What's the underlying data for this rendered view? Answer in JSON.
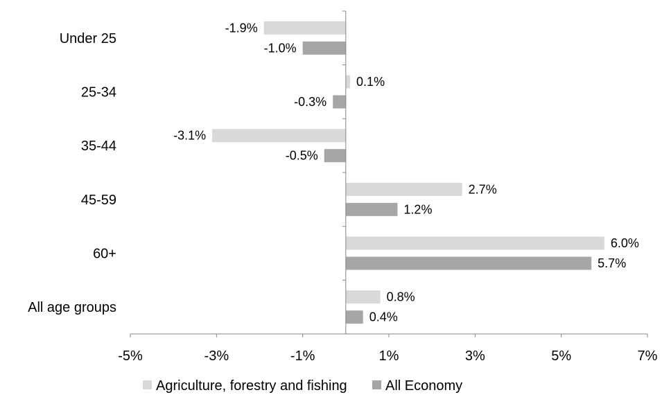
{
  "chart_data": {
    "type": "bar",
    "orientation": "horizontal",
    "categories": [
      "Under 25",
      "25-34",
      "35-44",
      "45-59",
      "60+",
      "All age groups"
    ],
    "series": [
      {
        "name": "Agriculture, forestry and fishing",
        "values": [
          -1.9,
          0.1,
          -3.1,
          2.7,
          6.0,
          0.8
        ],
        "labels": [
          "-1.9%",
          "0.1%",
          "-3.1%",
          "2.7%",
          "6.0%",
          "0.8%"
        ],
        "color": "#d9d9d9"
      },
      {
        "name": "All Economy",
        "values": [
          -1.0,
          -0.3,
          -0.5,
          1.2,
          5.7,
          0.4
        ],
        "labels": [
          "-1.0%",
          "-0.3%",
          "-0.5%",
          "1.2%",
          "5.7%",
          "0.4%"
        ],
        "color": "#a6a6a6"
      }
    ],
    "xlim": [
      -5,
      7
    ],
    "xticks": [
      -5,
      -3,
      -1,
      1,
      3,
      5,
      7
    ],
    "xtick_labels": [
      "-5%",
      "-3%",
      "-1%",
      "1%",
      "3%",
      "5%",
      "7%"
    ],
    "title": "",
    "xlabel": "",
    "ylabel": "",
    "grid": false,
    "legend": "bottom"
  }
}
